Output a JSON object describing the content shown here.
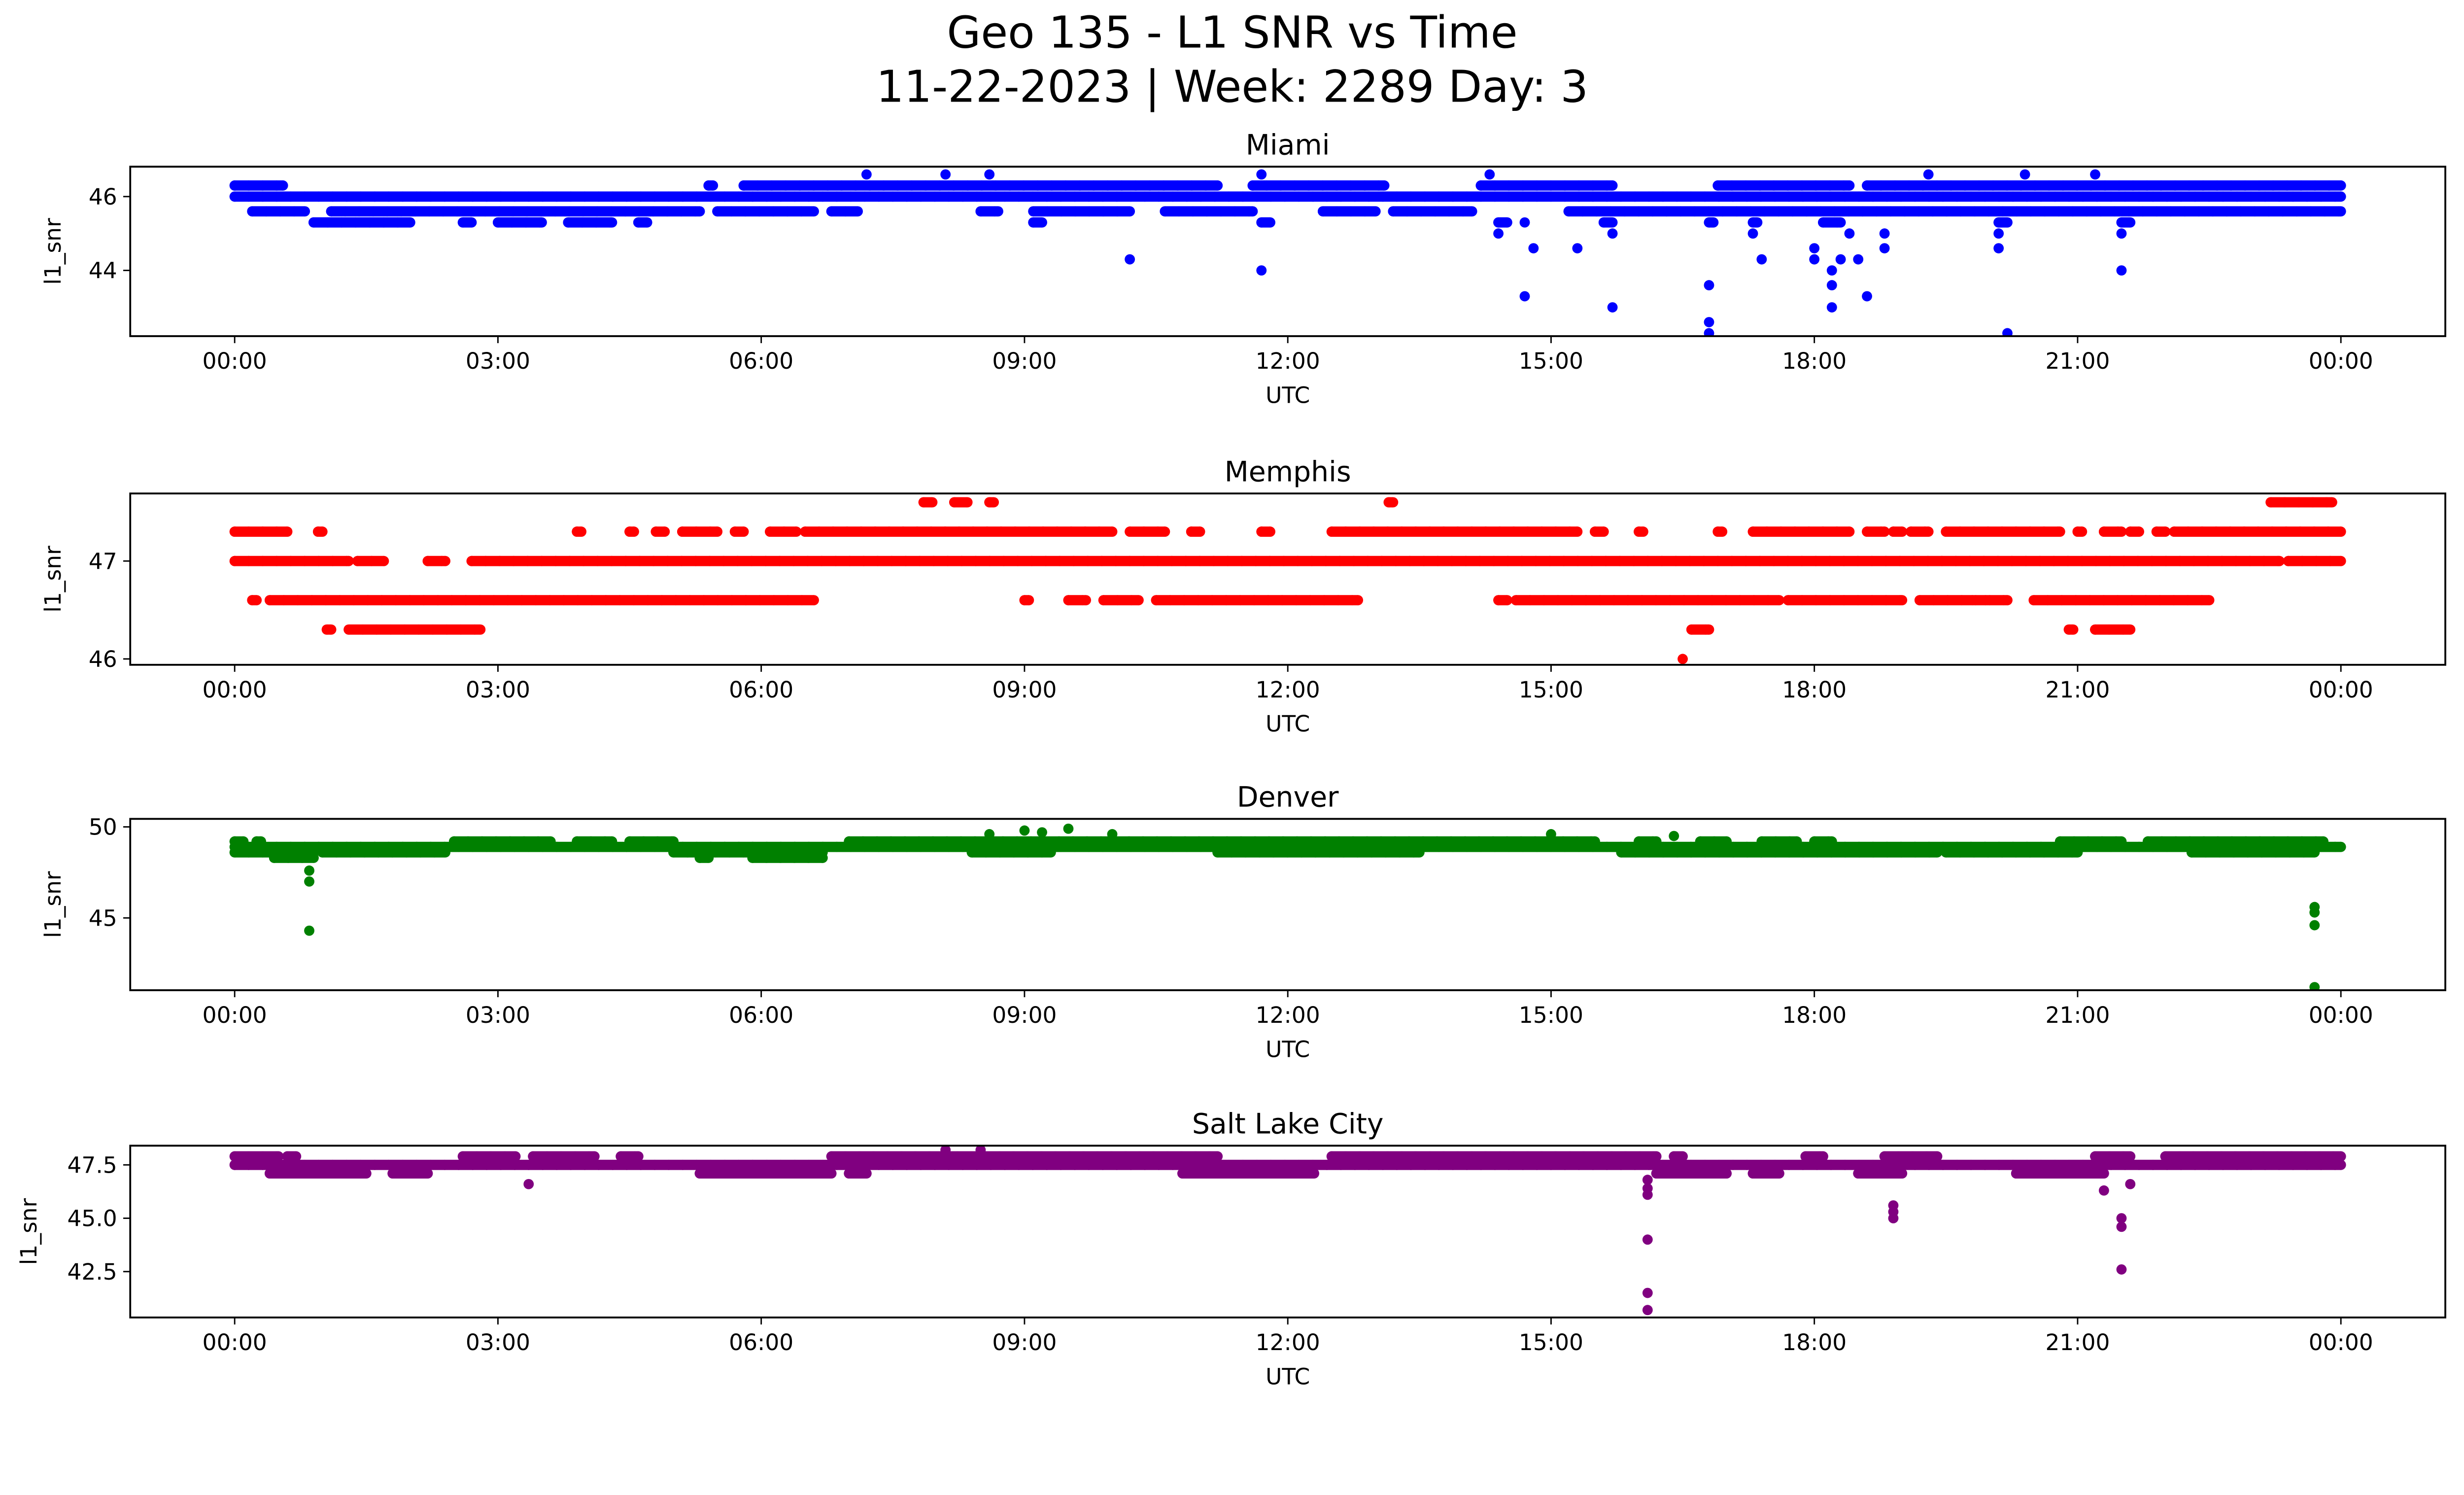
{
  "figure": {
    "title_line1": "Geo 135 - L1 SNR vs Time",
    "title_line2": "11-22-2023 | Week: 2289 Day: 3"
  },
  "chart_data": [
    {
      "type": "scatter",
      "title": "Miami",
      "xlabel": "UTC",
      "ylabel": "l1_snr",
      "color": "#0000ff",
      "xlim_hours": [
        -1.19,
        25.19
      ],
      "ylim": [
        42.22,
        46.81
      ],
      "x_ticks": [
        "00:00",
        "03:00",
        "06:00",
        "09:00",
        "12:00",
        "15:00",
        "18:00",
        "21:00",
        "00:00"
      ],
      "y_ticks": [
        44,
        46
      ],
      "grid": false,
      "bands": [
        {
          "y": 46.3,
          "segments": [
            [
              0.0,
              0.55
            ],
            [
              5.4,
              5.45
            ],
            [
              5.8,
              11.2
            ],
            [
              11.6,
              13.1
            ],
            [
              14.2,
              15.7
            ],
            [
              16.9,
              18.4
            ],
            [
              18.6,
              24.0
            ]
          ]
        },
        {
          "y": 46.0,
          "segments": [
            [
              0.0,
              24.0
            ]
          ]
        },
        {
          "y": 45.6,
          "segments": [
            [
              0.2,
              0.8
            ],
            [
              1.1,
              5.3
            ],
            [
              5.5,
              6.6
            ],
            [
              6.8,
              7.1
            ],
            [
              8.5,
              8.7
            ],
            [
              9.1,
              10.2
            ],
            [
              10.6,
              11.6
            ],
            [
              12.4,
              13.0
            ],
            [
              13.2,
              14.1
            ],
            [
              15.2,
              24.0
            ]
          ]
        },
        {
          "y": 45.3,
          "segments": [
            [
              0.9,
              2.0
            ],
            [
              2.6,
              2.7
            ],
            [
              3.0,
              3.5
            ],
            [
              3.8,
              4.3
            ],
            [
              4.6,
              4.7
            ],
            [
              9.1,
              9.2
            ],
            [
              11.7,
              11.8
            ],
            [
              14.4,
              14.5
            ],
            [
              15.6,
              15.7
            ],
            [
              16.8,
              16.85
            ],
            [
              17.3,
              17.35
            ],
            [
              18.1,
              18.3
            ],
            [
              20.1,
              20.2
            ],
            [
              21.5,
              21.6
            ]
          ]
        }
      ],
      "points": [
        {
          "x": 7.2,
          "y": 46.6
        },
        {
          "x": 8.1,
          "y": 46.6
        },
        {
          "x": 8.6,
          "y": 46.6
        },
        {
          "x": 11.7,
          "y": 46.6
        },
        {
          "x": 14.3,
          "y": 46.6
        },
        {
          "x": 19.3,
          "y": 46.6
        },
        {
          "x": 20.4,
          "y": 46.6
        },
        {
          "x": 21.2,
          "y": 46.6
        },
        {
          "x": 14.4,
          "y": 45.0
        },
        {
          "x": 14.7,
          "y": 45.3
        },
        {
          "x": 15.7,
          "y": 45.0
        },
        {
          "x": 17.3,
          "y": 45.0
        },
        {
          "x": 18.4,
          "y": 45.0
        },
        {
          "x": 18.8,
          "y": 45.0
        },
        {
          "x": 21.5,
          "y": 45.0
        },
        {
          "x": 20.1,
          "y": 45.0
        },
        {
          "x": 10.2,
          "y": 44.3
        },
        {
          "x": 11.7,
          "y": 44.0
        },
        {
          "x": 14.8,
          "y": 44.6
        },
        {
          "x": 15.3,
          "y": 44.6
        },
        {
          "x": 17.4,
          "y": 44.3
        },
        {
          "x": 18.0,
          "y": 44.6
        },
        {
          "x": 18.0,
          "y": 44.3
        },
        {
          "x": 18.3,
          "y": 44.3
        },
        {
          "x": 18.5,
          "y": 44.3
        },
        {
          "x": 18.8,
          "y": 44.6
        },
        {
          "x": 18.2,
          "y": 44.0
        },
        {
          "x": 18.2,
          "y": 43.6
        },
        {
          "x": 16.8,
          "y": 43.6
        },
        {
          "x": 18.6,
          "y": 43.3
        },
        {
          "x": 14.7,
          "y": 43.3
        },
        {
          "x": 15.7,
          "y": 43.0
        },
        {
          "x": 18.2,
          "y": 43.0
        },
        {
          "x": 16.8,
          "y": 42.6
        },
        {
          "x": 16.8,
          "y": 42.3
        },
        {
          "x": 20.2,
          "y": 42.3
        },
        {
          "x": 21.5,
          "y": 44.0
        },
        {
          "x": 20.1,
          "y": 44.6
        }
      ]
    },
    {
      "type": "scatter",
      "title": "Memphis",
      "xlabel": "UTC",
      "ylabel": "l1_snr",
      "color": "#ff0000",
      "xlim_hours": [
        -1.19,
        25.19
      ],
      "ylim": [
        45.94,
        47.69
      ],
      "x_ticks": [
        "00:00",
        "03:00",
        "06:00",
        "09:00",
        "12:00",
        "15:00",
        "18:00",
        "21:00",
        "00:00"
      ],
      "y_ticks": [
        46,
        47
      ],
      "grid": false,
      "bands": [
        {
          "y": 47.6,
          "segments": [
            [
              7.85,
              7.95
            ],
            [
              8.2,
              8.35
            ],
            [
              8.6,
              8.65
            ],
            [
              13.15,
              13.2
            ],
            [
              23.2,
              23.9
            ]
          ]
        },
        {
          "y": 47.3,
          "segments": [
            [
              0.0,
              0.6
            ],
            [
              0.95,
              1.0
            ],
            [
              3.9,
              3.95
            ],
            [
              4.5,
              4.55
            ],
            [
              4.8,
              4.9
            ],
            [
              5.1,
              5.5
            ],
            [
              5.7,
              5.8
            ],
            [
              6.1,
              6.4
            ],
            [
              6.5,
              10.0
            ],
            [
              10.2,
              10.6
            ],
            [
              10.9,
              11.0
            ],
            [
              11.7,
              11.8
            ],
            [
              12.5,
              15.3
            ],
            [
              15.5,
              15.6
            ],
            [
              16.0,
              16.05
            ],
            [
              16.9,
              16.95
            ],
            [
              17.3,
              18.4
            ],
            [
              18.6,
              18.8
            ],
            [
              18.9,
              19.0
            ],
            [
              19.1,
              19.3
            ],
            [
              19.5,
              20.8
            ],
            [
              21.0,
              21.05
            ],
            [
              21.3,
              21.5
            ],
            [
              21.6,
              21.7
            ],
            [
              21.9,
              22.0
            ],
            [
              22.1,
              24.0
            ]
          ]
        },
        {
          "y": 47.0,
          "segments": [
            [
              0.0,
              1.3
            ],
            [
              1.4,
              1.7
            ],
            [
              2.2,
              2.4
            ],
            [
              2.7,
              23.3
            ],
            [
              23.4,
              24.0
            ]
          ]
        },
        {
          "y": 46.6,
          "segments": [
            [
              0.2,
              0.25
            ],
            [
              0.4,
              6.6
            ],
            [
              9.0,
              9.05
            ],
            [
              9.5,
              9.7
            ],
            [
              9.9,
              10.3
            ],
            [
              10.5,
              12.8
            ],
            [
              14.4,
              14.5
            ],
            [
              14.6,
              17.6
            ],
            [
              17.7,
              19.0
            ],
            [
              19.2,
              20.2
            ],
            [
              20.5,
              22.5
            ]
          ]
        },
        {
          "y": 46.3,
          "segments": [
            [
              1.05,
              1.1
            ],
            [
              1.3,
              2.8
            ],
            [
              16.6,
              16.8
            ],
            [
              20.9,
              20.95
            ],
            [
              21.2,
              21.6
            ]
          ]
        }
      ],
      "points": [
        {
          "x": 16.5,
          "y": 46.0
        },
        {
          "x": 19.8,
          "y": 46.6
        },
        {
          "x": 19.95,
          "y": 46.6
        },
        {
          "x": 21.2,
          "y": 46.3
        }
      ]
    },
    {
      "type": "scatter",
      "title": "Denver",
      "xlabel": "UTC",
      "ylabel": "l1_snr",
      "color": "#008000",
      "xlim_hours": [
        -1.19,
        25.19
      ],
      "ylim": [
        41.03,
        50.44
      ],
      "x_ticks": [
        "00:00",
        "03:00",
        "06:00",
        "09:00",
        "12:00",
        "15:00",
        "18:00",
        "21:00",
        "00:00"
      ],
      "y_ticks": [
        45,
        50
      ],
      "grid": false,
      "bands": [
        {
          "y": 49.2,
          "segments": [
            [
              0.0,
              0.1
            ],
            [
              0.25,
              0.3
            ],
            [
              2.5,
              3.6
            ],
            [
              3.9,
              4.3
            ],
            [
              4.5,
              5.0
            ],
            [
              7.0,
              15.5
            ],
            [
              16.0,
              16.2
            ],
            [
              16.7,
              17.0
            ],
            [
              17.4,
              17.8
            ],
            [
              18.0,
              18.2
            ],
            [
              20.8,
              21.5
            ],
            [
              21.8,
              23.8
            ]
          ]
        },
        {
          "y": 48.9,
          "segments": [
            [
              0.0,
              24.0
            ]
          ]
        },
        {
          "y": 48.6,
          "segments": [
            [
              0.0,
              0.9
            ],
            [
              1.0,
              2.4
            ],
            [
              5.0,
              6.7
            ],
            [
              8.4,
              9.3
            ],
            [
              11.2,
              13.5
            ],
            [
              15.8,
              19.4
            ],
            [
              19.5,
              21.0
            ],
            [
              22.3,
              23.7
            ]
          ]
        },
        {
          "y": 48.3,
          "segments": [
            [
              0.45,
              0.9
            ],
            [
              5.3,
              5.4
            ],
            [
              5.9,
              6.7
            ]
          ]
        }
      ],
      "points": [
        {
          "x": 8.6,
          "y": 49.6
        },
        {
          "x": 9.0,
          "y": 49.8
        },
        {
          "x": 9.2,
          "y": 49.7
        },
        {
          "x": 9.5,
          "y": 49.9
        },
        {
          "x": 10.0,
          "y": 49.6
        },
        {
          "x": 15.0,
          "y": 49.6
        },
        {
          "x": 16.4,
          "y": 49.5
        },
        {
          "x": 0.85,
          "y": 47.6
        },
        {
          "x": 0.85,
          "y": 47.0
        },
        {
          "x": 0.85,
          "y": 44.3
        },
        {
          "x": 23.7,
          "y": 45.6
        },
        {
          "x": 23.7,
          "y": 45.3
        },
        {
          "x": 23.7,
          "y": 44.6
        },
        {
          "x": 23.7,
          "y": 41.2
        }
      ]
    },
    {
      "type": "scatter",
      "title": "Salt Lake City",
      "xlabel": "UTC",
      "ylabel": "l1_snr",
      "color": "#800080",
      "xlim_hours": [
        -1.19,
        25.19
      ],
      "ylim": [
        40.35,
        48.4
      ],
      "x_ticks": [
        "00:00",
        "03:00",
        "06:00",
        "09:00",
        "12:00",
        "15:00",
        "18:00",
        "21:00",
        "00:00"
      ],
      "y_ticks": [
        42.5,
        45.0,
        47.5
      ],
      "grid": false,
      "bands": [
        {
          "y": 47.9,
          "segments": [
            [
              0.0,
              0.5
            ],
            [
              0.6,
              0.7
            ],
            [
              2.6,
              3.2
            ],
            [
              3.4,
              4.1
            ],
            [
              4.4,
              4.6
            ],
            [
              6.8,
              11.2
            ],
            [
              12.5,
              16.2
            ],
            [
              16.4,
              16.5
            ],
            [
              17.9,
              18.1
            ],
            [
              18.8,
              19.4
            ],
            [
              21.2,
              21.6
            ],
            [
              22.0,
              24.0
            ]
          ]
        },
        {
          "y": 47.5,
          "segments": [
            [
              0.0,
              24.0
            ]
          ]
        },
        {
          "y": 47.1,
          "segments": [
            [
              0.4,
              1.5
            ],
            [
              1.8,
              2.2
            ],
            [
              5.3,
              6.8
            ],
            [
              7.0,
              7.2
            ],
            [
              10.8,
              12.3
            ],
            [
              16.2,
              17.0
            ],
            [
              17.3,
              17.6
            ],
            [
              18.5,
              19.0
            ],
            [
              20.3,
              21.3
            ]
          ]
        }
      ],
      "points": [
        {
          "x": 3.35,
          "y": 46.6
        },
        {
          "x": 8.1,
          "y": 48.2
        },
        {
          "x": 8.5,
          "y": 48.2
        },
        {
          "x": 16.1,
          "y": 46.8
        },
        {
          "x": 16.1,
          "y": 46.4
        },
        {
          "x": 16.1,
          "y": 46.1
        },
        {
          "x": 16.1,
          "y": 44.0
        },
        {
          "x": 16.1,
          "y": 41.5
        },
        {
          "x": 16.1,
          "y": 40.7
        },
        {
          "x": 18.9,
          "y": 45.6
        },
        {
          "x": 18.9,
          "y": 45.3
        },
        {
          "x": 18.9,
          "y": 45.0
        },
        {
          "x": 21.3,
          "y": 46.3
        },
        {
          "x": 21.6,
          "y": 46.6
        },
        {
          "x": 21.5,
          "y": 45.0
        },
        {
          "x": 21.5,
          "y": 44.6
        },
        {
          "x": 21.5,
          "y": 42.6
        }
      ]
    }
  ]
}
